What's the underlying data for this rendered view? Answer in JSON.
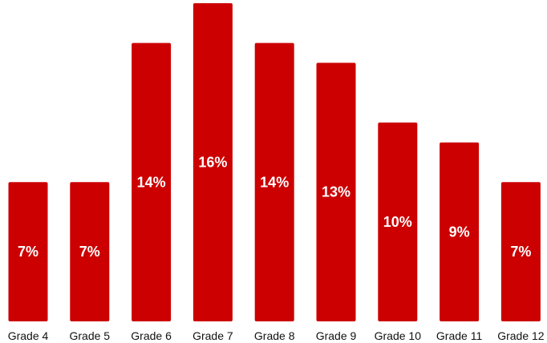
{
  "chart_data": {
    "type": "bar",
    "categories": [
      "Grade 4",
      "Grade 5",
      "Grade 6",
      "Grade 7",
      "Grade 8",
      "Grade 9",
      "Grade 10",
      "Grade 11",
      "Grade 12"
    ],
    "values": [
      7,
      7,
      14,
      16,
      14,
      13,
      10,
      9,
      7
    ],
    "data_labels": [
      "7%",
      "7%",
      "14%",
      "16%",
      "14%",
      "13%",
      "10%",
      "9%",
      "7%"
    ],
    "title": "",
    "xlabel": "",
    "ylabel": "",
    "ylim": [
      0,
      16
    ],
    "grid": false,
    "legend": "none",
    "bar_color": "#cc0000",
    "label_color": "#ffffff"
  }
}
